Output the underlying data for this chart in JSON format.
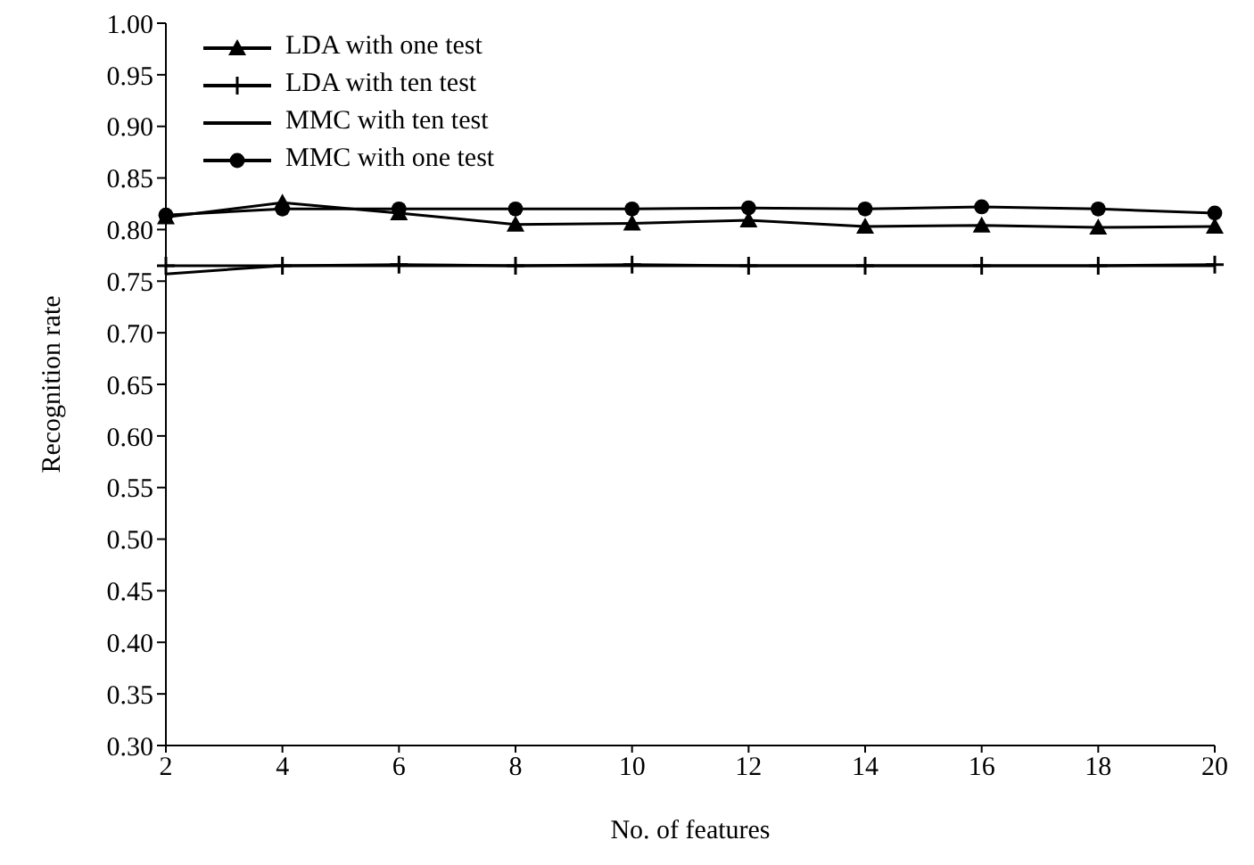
{
  "chart_data": {
    "type": "line",
    "xlabel": "No. of features",
    "ylabel": "Recognition rate",
    "x": [
      2,
      4,
      6,
      8,
      10,
      12,
      14,
      16,
      18,
      20
    ],
    "series": [
      {
        "name": "LDA with one test",
        "color": "#000000",
        "marker": "triangle",
        "values": [
          0.812,
          0.826,
          0.816,
          0.805,
          0.806,
          0.809,
          0.803,
          0.804,
          0.802,
          0.803
        ]
      },
      {
        "name": "LDA with ten test",
        "color": "#000000",
        "marker": "cross",
        "values": [
          0.765,
          0.765,
          0.766,
          0.765,
          0.766,
          0.765,
          0.765,
          0.765,
          0.765,
          0.766
        ]
      },
      {
        "name": "MMC with ten test",
        "color": "#000000",
        "marker": "none",
        "values": [
          0.757,
          0.765,
          0.765,
          0.765,
          0.765,
          0.765,
          0.765,
          0.765,
          0.765,
          0.765
        ]
      },
      {
        "name": "MMC with one test",
        "color": "#000000",
        "marker": "circle",
        "values": [
          0.814,
          0.82,
          0.82,
          0.82,
          0.82,
          0.821,
          0.82,
          0.822,
          0.82,
          0.816
        ]
      }
    ],
    "xlim": [
      2,
      20
    ],
    "xticks": [
      2,
      4,
      6,
      8,
      10,
      12,
      14,
      16,
      18,
      20
    ],
    "ylim": [
      0.3,
      1.0
    ],
    "yticks": [
      {
        "value": 0.3,
        "label": "0.30"
      },
      {
        "value": 0.35,
        "label": "0.35"
      },
      {
        "value": 0.4,
        "label": "0.40"
      },
      {
        "value": 0.45,
        "label": "0.45"
      },
      {
        "value": 0.5,
        "label": "0.50"
      },
      {
        "value": 0.55,
        "label": "0.55"
      },
      {
        "value": 0.6,
        "label": "0.60"
      },
      {
        "value": 0.65,
        "label": "0.65"
      },
      {
        "value": 0.7,
        "label": "0.70"
      },
      {
        "value": 0.75,
        "label": "0.75"
      },
      {
        "value": 0.8,
        "label": "0.80"
      },
      {
        "value": 0.85,
        "label": "0.85"
      },
      {
        "value": 0.9,
        "label": "0.90"
      },
      {
        "value": 0.95,
        "label": "0.95"
      },
      {
        "value": 1.0,
        "label": "1.00"
      }
    ],
    "grid": false,
    "legend": "top left"
  }
}
